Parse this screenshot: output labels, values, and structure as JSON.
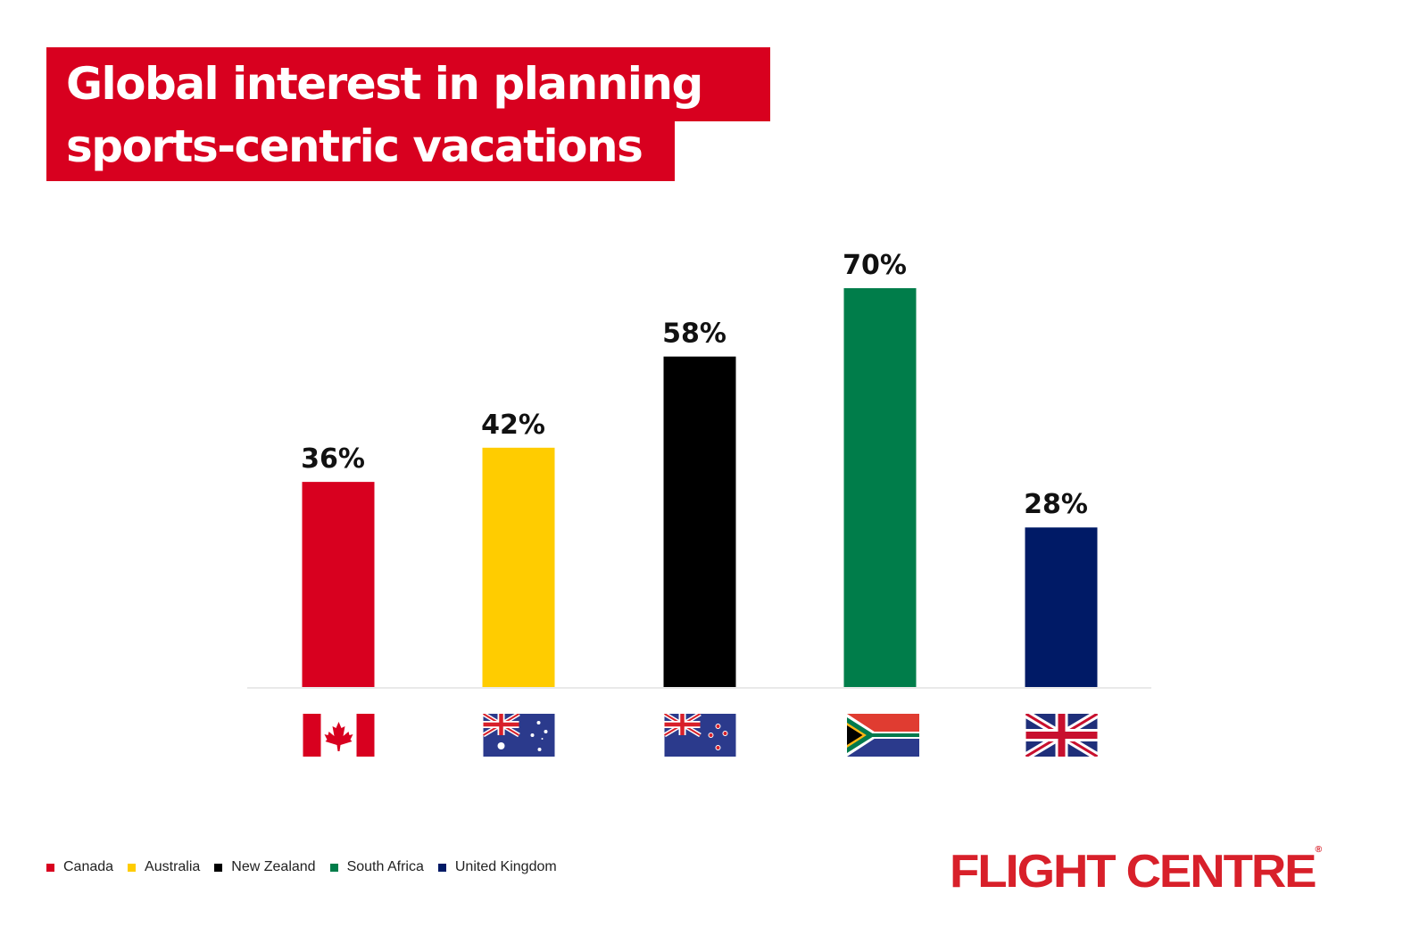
{
  "title_lines": [
    "Global interest in planning",
    "sports-centric vacations"
  ],
  "chart_data": {
    "type": "bar",
    "title": "Global interest in planning sports-centric vacations",
    "categories": [
      "Canada",
      "Australia",
      "New Zealand",
      "South Africa",
      "United Kingdom"
    ],
    "values": [
      36,
      42,
      58,
      70,
      28
    ],
    "data_labels": [
      "36%",
      "42%",
      "58%",
      "70%",
      "28%"
    ],
    "colors": [
      "#d8001f",
      "#ffcc00",
      "#000000",
      "#007d4a",
      "#001a66"
    ],
    "ylim": [
      0,
      70
    ],
    "grid": false,
    "legend_placement": "bottom-left",
    "xaxis_icons": [
      "canada-flag-icon",
      "australia-flag-icon",
      "new-zealand-flag-icon",
      "south-africa-flag-icon",
      "united-kingdom-flag-icon"
    ]
  },
  "logo": {
    "text": "FLIGHT CENTRE",
    "mark": "®",
    "color": "#d8202a"
  }
}
